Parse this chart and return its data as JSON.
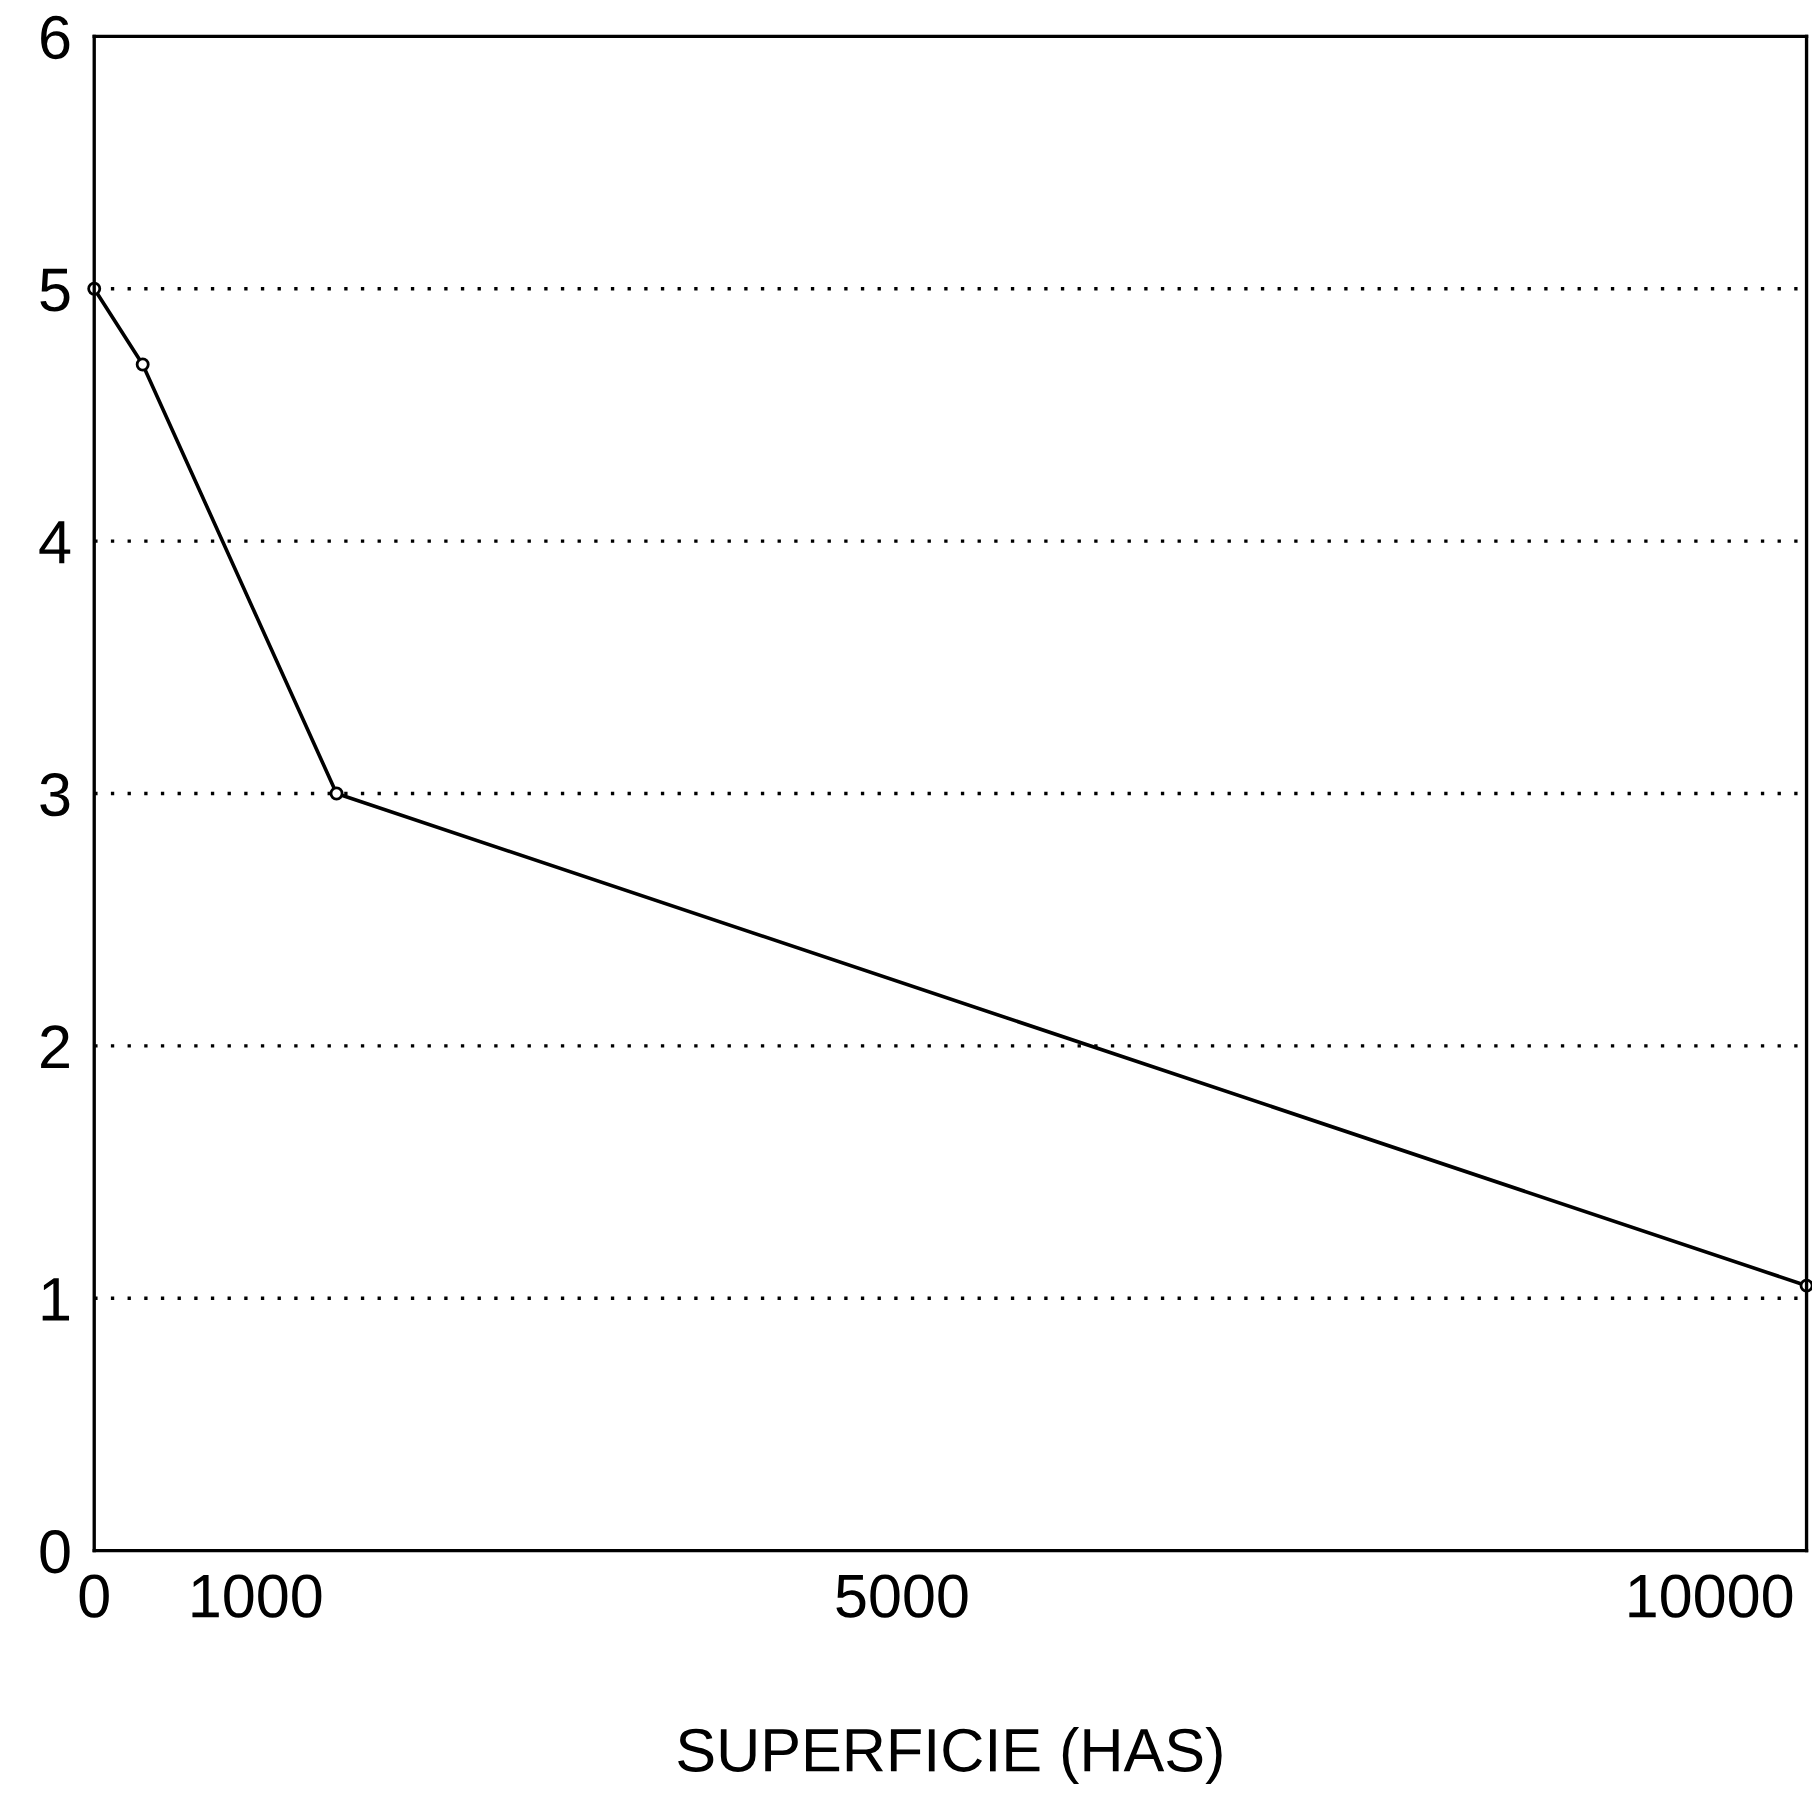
{
  "chart_data": {
    "type": "line",
    "xlabel": "SUPERFICIE (HAS)",
    "x": [
      0,
      300,
      1500,
      10600
    ],
    "values": [
      5,
      4.7,
      3,
      1.05
    ],
    "color": "#000000",
    "marker": "circle",
    "line_style": "solid",
    "xlim": [
      0,
      10600
    ],
    "xticks": [
      0,
      1000,
      5000,
      10000
    ],
    "ylim": [
      0,
      6
    ],
    "yticks": [
      0,
      1,
      2,
      3,
      4,
      5,
      6
    ],
    "grid": "y"
  }
}
